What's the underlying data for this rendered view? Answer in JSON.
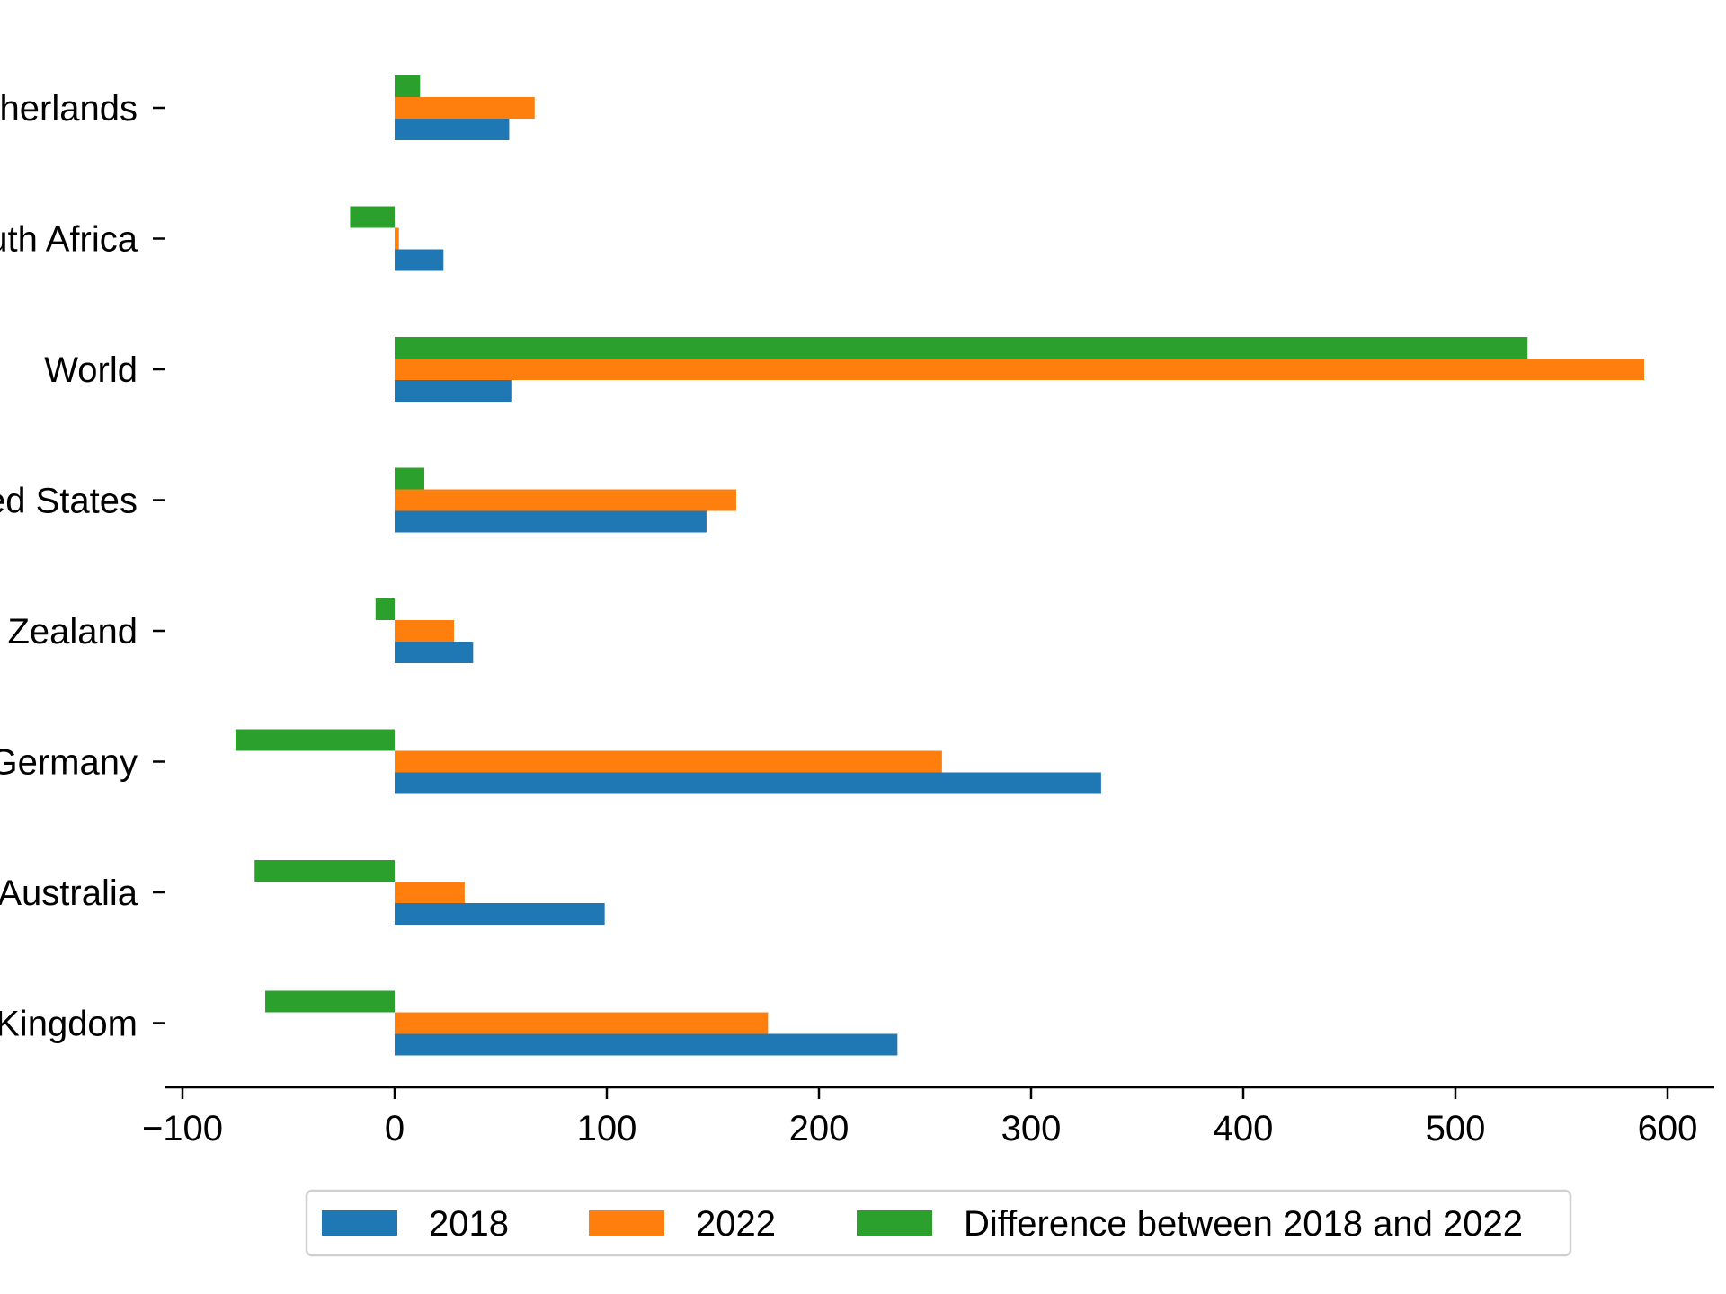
{
  "chart_data": {
    "type": "bar",
    "orientation": "horizontal",
    "categories": [
      "United Kingdom",
      "Australia",
      "Germany",
      "New Zealand",
      "United States",
      "World",
      "South Africa",
      "Netherlands"
    ],
    "series": [
      {
        "name": "2018",
        "color": "#1f77b4",
        "values": [
          237,
          99,
          333,
          37,
          147,
          55,
          23,
          54
        ]
      },
      {
        "name": "2022",
        "color": "#ff7f0e",
        "values": [
          176,
          33,
          258,
          28,
          161,
          589,
          2,
          66
        ]
      },
      {
        "name": "Difference between 2018 and 2022",
        "color": "#2ca02c",
        "values": [
          -61,
          -66,
          -75,
          -9,
          14,
          534,
          -21,
          12
        ]
      }
    ],
    "xlim": [
      -108,
      622
    ],
    "x_ticks": [
      -100,
      0,
      100,
      200,
      300,
      400,
      500,
      600
    ],
    "x_tick_labels": [
      "−100",
      "0",
      "100",
      "200",
      "300",
      "400",
      "500",
      "600"
    ],
    "title": "",
    "xlabel": "",
    "ylabel": "",
    "grid": false,
    "legend_position": "bottom-center"
  }
}
